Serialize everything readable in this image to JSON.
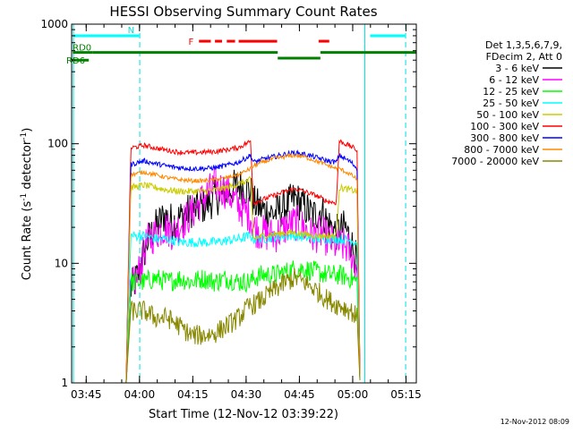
{
  "chart_data": {
    "type": "line",
    "title": "HESSI Observing Summary Count Rates",
    "xlabel": "Start Time (12-Nov-12 03:39:22)",
    "ylabel_main": "Count Rate (s",
    "ylabel_sup1": "-1",
    "ylabel_mid": " detector",
    "ylabel_sup2": "-1",
    "ylabel_end": ")",
    "timestamp": "12-Nov-2012 08:09",
    "y_scale": "log",
    "ylim": [
      1,
      1000
    ],
    "xlim": [
      "03:39",
      "05:19"
    ],
    "x_ticks": [
      {
        "t": 226,
        "label": "03:45"
      },
      {
        "t": 1126,
        "label": "04:00"
      },
      {
        "t": 2026,
        "label": "04:15"
      },
      {
        "t": 2926,
        "label": "04:30"
      },
      {
        "t": 3826,
        "label": "04:45"
      },
      {
        "t": 4726,
        "label": "05:00"
      },
      {
        "t": 5626,
        "label": "05:15"
      }
    ],
    "y_ticks": [
      {
        "v": 1,
        "label": "1"
      },
      {
        "v": 10,
        "label": "10"
      },
      {
        "v": 100,
        "label": "100"
      },
      {
        "v": 1000,
        "label": "1000"
      }
    ],
    "legend_header": [
      "Det 1,3,5,6,7,9,",
      "FDecim 2, Att 0"
    ],
    "legend_placement": "right",
    "series": [
      {
        "name": "3 - 6 keV",
        "color": "#000000",
        "points": [
          [
            900,
            1
          ],
          [
            980,
            6
          ],
          [
            1100,
            8
          ],
          [
            1250,
            15
          ],
          [
            1400,
            20
          ],
          [
            1550,
            25
          ],
          [
            1700,
            22
          ],
          [
            1850,
            25
          ],
          [
            2000,
            28
          ],
          [
            2200,
            30
          ],
          [
            2400,
            35
          ],
          [
            2600,
            40
          ],
          [
            2800,
            45
          ],
          [
            3000,
            40
          ],
          [
            3050,
            32
          ],
          [
            3200,
            28
          ],
          [
            3400,
            26
          ],
          [
            3600,
            30
          ],
          [
            3750,
            35
          ],
          [
            3900,
            30
          ],
          [
            4050,
            25
          ],
          [
            4200,
            28
          ],
          [
            4300,
            22
          ],
          [
            4450,
            18
          ],
          [
            4600,
            20
          ],
          [
            4700,
            15
          ],
          [
            4800,
            10
          ],
          [
            4850,
            1
          ]
        ]
      },
      {
        "name": "6 - 12 keV",
        "color": "#ff00ff",
        "points": [
          [
            900,
            1
          ],
          [
            980,
            6
          ],
          [
            1100,
            8
          ],
          [
            1250,
            15
          ],
          [
            1400,
            18
          ],
          [
            1550,
            20
          ],
          [
            1700,
            18
          ],
          [
            1850,
            22
          ],
          [
            2000,
            26
          ],
          [
            2200,
            35
          ],
          [
            2400,
            45
          ],
          [
            2600,
            40
          ],
          [
            2800,
            30
          ],
          [
            3000,
            25
          ],
          [
            3050,
            20
          ],
          [
            3200,
            18
          ],
          [
            3400,
            17
          ],
          [
            3600,
            20
          ],
          [
            3750,
            22
          ],
          [
            3900,
            20
          ],
          [
            4050,
            17
          ],
          [
            4200,
            18
          ],
          [
            4300,
            16
          ],
          [
            4450,
            14
          ],
          [
            4600,
            14
          ],
          [
            4700,
            12
          ],
          [
            4800,
            9
          ],
          [
            4850,
            1
          ]
        ]
      },
      {
        "name": "12 - 25 keV",
        "color": "#00ff00",
        "points": [
          [
            900,
            1
          ],
          [
            980,
            7
          ],
          [
            1200,
            7
          ],
          [
            1400,
            7.5
          ],
          [
            1600,
            7
          ],
          [
            1800,
            7.5
          ],
          [
            2000,
            7
          ],
          [
            2200,
            7.5
          ],
          [
            2400,
            7
          ],
          [
            2600,
            7.5
          ],
          [
            2800,
            7
          ],
          [
            3000,
            7
          ],
          [
            3050,
            7.5
          ],
          [
            3200,
            8
          ],
          [
            3400,
            8
          ],
          [
            3600,
            8.5
          ],
          [
            3750,
            9
          ],
          [
            3900,
            9
          ],
          [
            4100,
            8.5
          ],
          [
            4300,
            8
          ],
          [
            4500,
            8
          ],
          [
            4700,
            7.5
          ],
          [
            4800,
            7
          ],
          [
            4850,
            1
          ]
        ]
      },
      {
        "name": "25 - 50 keV",
        "color": "#00ffff",
        "points": [
          [
            900,
            1
          ],
          [
            980,
            17
          ],
          [
            1200,
            17
          ],
          [
            1400,
            16
          ],
          [
            1600,
            16
          ],
          [
            1800,
            15
          ],
          [
            2000,
            15
          ],
          [
            2200,
            15
          ],
          [
            2400,
            15
          ],
          [
            2600,
            15.5
          ],
          [
            2800,
            16
          ],
          [
            3000,
            17
          ],
          [
            3050,
            16
          ],
          [
            3200,
            16
          ],
          [
            3400,
            16.5
          ],
          [
            3600,
            17
          ],
          [
            3750,
            17
          ],
          [
            3900,
            16.5
          ],
          [
            4100,
            16
          ],
          [
            4300,
            16
          ],
          [
            4500,
            16
          ],
          [
            4700,
            15.5
          ],
          [
            4800,
            15
          ],
          [
            4850,
            1
          ]
        ]
      },
      {
        "name": "50 - 100 keV",
        "color": "#cccc00",
        "points": [
          [
            900,
            1
          ],
          [
            980,
            43
          ],
          [
            1200,
            45
          ],
          [
            1400,
            43
          ],
          [
            1600,
            41
          ],
          [
            1800,
            40
          ],
          [
            2000,
            40
          ],
          [
            2200,
            40
          ],
          [
            2400,
            41
          ],
          [
            2600,
            43
          ],
          [
            2800,
            46
          ],
          [
            3000,
            50
          ],
          [
            3050,
            16
          ],
          [
            3200,
            17
          ],
          [
            3400,
            17.5
          ],
          [
            3600,
            18
          ],
          [
            3750,
            18
          ],
          [
            3900,
            17.5
          ],
          [
            4100,
            17
          ],
          [
            4300,
            17
          ],
          [
            4450,
            17
          ],
          [
            4500,
            43
          ],
          [
            4700,
            41
          ],
          [
            4800,
            40
          ],
          [
            4850,
            1
          ]
        ]
      },
      {
        "name": "100 - 300 keV",
        "color": "#ff0000",
        "points": [
          [
            900,
            1
          ],
          [
            980,
            92
          ],
          [
            1200,
            97
          ],
          [
            1400,
            92
          ],
          [
            1600,
            88
          ],
          [
            1800,
            85
          ],
          [
            2000,
            84
          ],
          [
            2200,
            85
          ],
          [
            2400,
            86
          ],
          [
            2600,
            89
          ],
          [
            2800,
            93
          ],
          [
            3000,
            105
          ],
          [
            3050,
            32
          ],
          [
            3200,
            34
          ],
          [
            3400,
            37
          ],
          [
            3600,
            40
          ],
          [
            3750,
            42
          ],
          [
            3900,
            40
          ],
          [
            4100,
            37
          ],
          [
            4300,
            33
          ],
          [
            4450,
            32
          ],
          [
            4500,
            105
          ],
          [
            4700,
            95
          ],
          [
            4800,
            88
          ],
          [
            4850,
            1
          ]
        ]
      },
      {
        "name": "300 - 800 keV",
        "color": "#0000ff",
        "points": [
          [
            900,
            1
          ],
          [
            980,
            67
          ],
          [
            1200,
            72
          ],
          [
            1400,
            68
          ],
          [
            1600,
            65
          ],
          [
            1800,
            63
          ],
          [
            2000,
            62
          ],
          [
            2200,
            62
          ],
          [
            2400,
            63
          ],
          [
            2600,
            66
          ],
          [
            2800,
            70
          ],
          [
            3000,
            80
          ],
          [
            3050,
            70
          ],
          [
            3200,
            74
          ],
          [
            3400,
            78
          ],
          [
            3600,
            82
          ],
          [
            3750,
            84
          ],
          [
            3900,
            82
          ],
          [
            4100,
            77
          ],
          [
            4300,
            72
          ],
          [
            4450,
            70
          ],
          [
            4500,
            80
          ],
          [
            4700,
            70
          ],
          [
            4800,
            62
          ],
          [
            4850,
            1
          ]
        ]
      },
      {
        "name": "800 - 7000 keV",
        "color": "#ff8800",
        "points": [
          [
            900,
            1
          ],
          [
            980,
            55
          ],
          [
            1200,
            58
          ],
          [
            1400,
            55
          ],
          [
            1600,
            52
          ],
          [
            1800,
            50
          ],
          [
            2000,
            49
          ],
          [
            2200,
            49
          ],
          [
            2400,
            50
          ],
          [
            2600,
            52
          ],
          [
            2800,
            55
          ],
          [
            3000,
            62
          ],
          [
            3050,
            65
          ],
          [
            3200,
            70
          ],
          [
            3400,
            75
          ],
          [
            3600,
            78
          ],
          [
            3750,
            80
          ],
          [
            3900,
            78
          ],
          [
            4100,
            72
          ],
          [
            4300,
            66
          ],
          [
            4450,
            62
          ],
          [
            4500,
            62
          ],
          [
            4700,
            55
          ],
          [
            4800,
            50
          ],
          [
            4850,
            1
          ]
        ]
      },
      {
        "name": "7000 - 20000 keV",
        "color": "#888800",
        "points": [
          [
            900,
            1
          ],
          [
            980,
            4
          ],
          [
            1200,
            4
          ],
          [
            1400,
            3.5
          ],
          [
            1600,
            3.5
          ],
          [
            1800,
            3
          ],
          [
            2000,
            2.5
          ],
          [
            2200,
            2.5
          ],
          [
            2400,
            2.6
          ],
          [
            2600,
            3
          ],
          [
            2800,
            3.5
          ],
          [
            3000,
            4.5
          ],
          [
            3050,
            4.5
          ],
          [
            3200,
            5
          ],
          [
            3400,
            6
          ],
          [
            3600,
            7
          ],
          [
            3750,
            7.5
          ],
          [
            3900,
            7
          ],
          [
            4100,
            6
          ],
          [
            4300,
            5
          ],
          [
            4450,
            4.5
          ],
          [
            4500,
            4.5
          ],
          [
            4700,
            4
          ],
          [
            4800,
            3.5
          ],
          [
            4850,
            1
          ]
        ]
      }
    ],
    "annotations": {
      "night_bands": [
        {
          "start": 0,
          "end": 1130,
          "label": "N",
          "y": 800
        },
        {
          "start": 5020,
          "end": 5626,
          "label": "",
          "y": 800
        }
      ],
      "flare_segments": [
        {
          "start": 2130,
          "end": 2330,
          "label": "F"
        },
        {
          "start": 2400,
          "end": 2520,
          "label": ""
        },
        {
          "start": 2600,
          "end": 2740,
          "label": ""
        },
        {
          "start": 2800,
          "end": 3450,
          "label": ""
        },
        {
          "start": 4150,
          "end": 4330,
          "label": ""
        }
      ],
      "rd_bars": [
        {
          "start": 0,
          "end": 330,
          "y": 580,
          "label": "RD0"
        },
        {
          "start": 330,
          "end": 3460,
          "y": 580,
          "label": ""
        },
        {
          "start": 3460,
          "end": 4180,
          "y": 520,
          "label": ""
        },
        {
          "start": 4180,
          "end": 5826,
          "y": 580,
          "label": ""
        },
        {
          "start": -200,
          "end": 270,
          "y": 500,
          "label": "RD6"
        }
      ],
      "vertical_lines": [
        {
          "t": 10,
          "style": "solid"
        },
        {
          "t": 1130,
          "style": "dashed"
        },
        {
          "t": 4930,
          "style": "solid"
        },
        {
          "t": 5620,
          "style": "dashed"
        }
      ]
    }
  }
}
